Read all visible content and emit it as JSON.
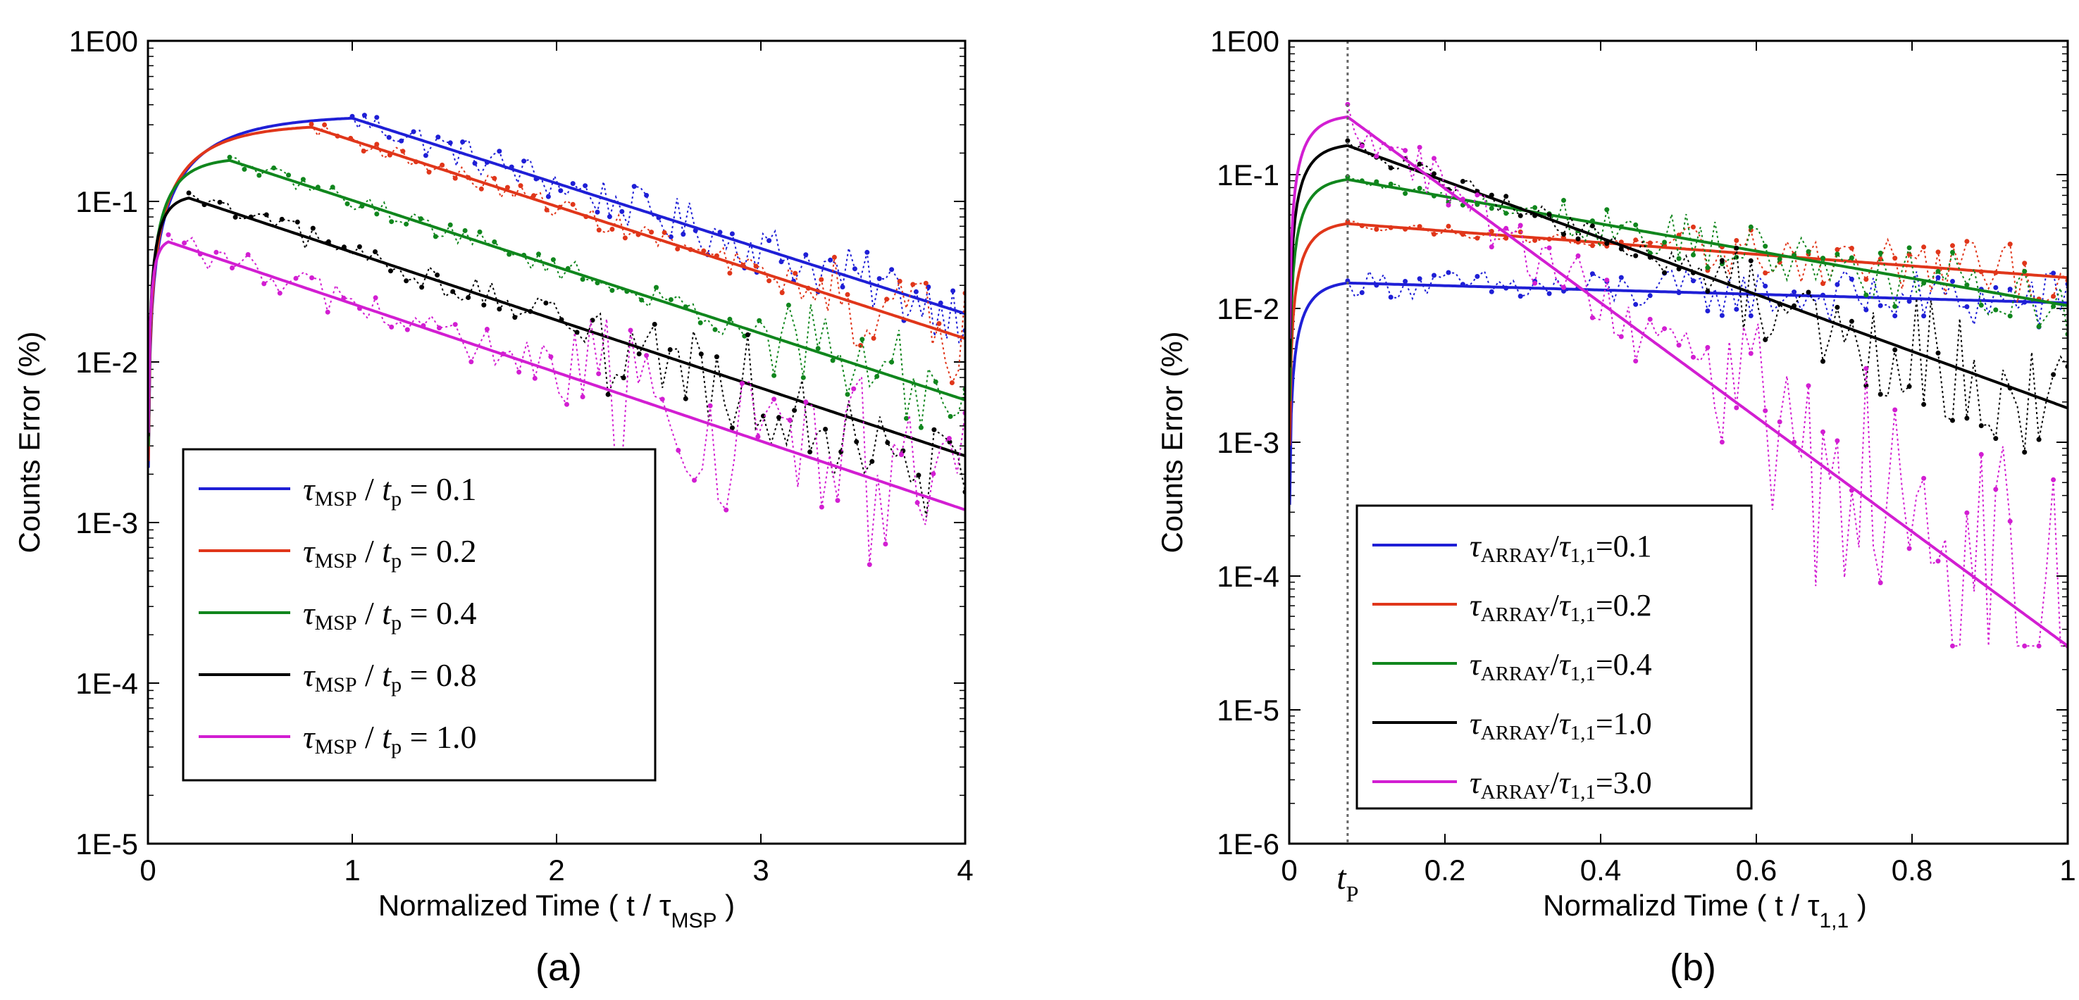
{
  "colors": {
    "blue": "#1f1fd6",
    "red": "#e0361a",
    "green": "#10861d",
    "black": "#000000",
    "magenta": "#d21ed2"
  },
  "chart_data": [
    {
      "type": "line",
      "panel_label": "(a)",
      "xlabel_prefix": "Normalized Time ( t / τ",
      "xlabel_sub": "MSP",
      "xlabel_suffix": " )",
      "ylabel": "Counts Error (%)",
      "yscale": "log",
      "xlim": [
        0,
        4
      ],
      "ylim": [
        1e-05,
        1
      ],
      "xticks": [
        0,
        1,
        2,
        3,
        4
      ],
      "xtick_labels": [
        "0",
        "1",
        "2",
        "3",
        "4"
      ],
      "yticks": [
        1e-05,
        0.0001,
        0.001,
        0.01,
        0.1,
        1
      ],
      "ytick_labels": [
        "1E-5",
        "1E-4",
        "1E-3",
        "1E-2",
        "1E-1",
        "1E00"
      ],
      "legend_position": "lower-left",
      "series": [
        {
          "name": "τMSP / tp = 0.1",
          "legend": {
            "tau_sub": "MSP",
            "t_sub": "p",
            "value": "= 0.1"
          },
          "color_key": "blue",
          "peak_t": 1.0,
          "peak_y": 0.33,
          "end_y": 0.02,
          "noise": 0.05,
          "noise_start": 1.0
        },
        {
          "name": "τMSP / tp = 0.2",
          "legend": {
            "tau_sub": "MSP",
            "t_sub": "p",
            "value": "= 0.2"
          },
          "color_key": "red",
          "peak_t": 0.8,
          "peak_y": 0.29,
          "end_y": 0.014,
          "noise": 0.08,
          "noise_start": 3.3
        },
        {
          "name": "τMSP / tp = 0.4",
          "legend": {
            "tau_sub": "MSP",
            "t_sub": "p",
            "value": "= 0.4"
          },
          "color_key": "green",
          "peak_t": 0.4,
          "peak_y": 0.18,
          "end_y": 0.0058,
          "noise": 0.08,
          "noise_start": 3.0
        },
        {
          "name": "τMSP / tp = 0.8",
          "legend": {
            "tau_sub": "MSP",
            "t_sub": "p",
            "value": "= 0.8"
          },
          "color_key": "black",
          "peak_t": 0.2,
          "peak_y": 0.105,
          "end_y": 0.0026,
          "noise": 0.12,
          "noise_start": 2.2
        },
        {
          "name": "τMSP / tp = 1.0",
          "legend": {
            "tau_sub": "MSP",
            "t_sub": "p",
            "value": "= 1.0"
          },
          "color_key": "magenta",
          "peak_t": 0.1,
          "peak_y": 0.056,
          "end_y": 0.0012,
          "noise": 0.16,
          "noise_start": 2.0
        }
      ]
    },
    {
      "type": "line",
      "panel_label": "(b)",
      "xlabel_prefix": "Normalizd Time ( t / τ",
      "xlabel_sub": "1,1",
      "xlabel_suffix": " )",
      "ylabel": "Counts Error (%)",
      "yscale": "log",
      "xlim": [
        0,
        1
      ],
      "ylim": [
        1e-06,
        1
      ],
      "xticks": [
        0,
        0.2,
        0.4,
        0.6,
        0.8,
        1
      ],
      "xtick_labels": [
        "0",
        "0.2",
        "0.4",
        "0.6",
        "0.8",
        "1"
      ],
      "yticks": [
        1e-06,
        1e-05,
        0.0001,
        0.001,
        0.01,
        0.1,
        1
      ],
      "ytick_labels": [
        "1E-6",
        "1E-5",
        "1E-4",
        "1E-3",
        "1E-2",
        "1E-1",
        "1E00"
      ],
      "vline_x": 0.075,
      "vline_label": "t",
      "vline_label_sub": "P",
      "legend_position": "lower-left",
      "series": [
        {
          "name": "τARRAY/τ1,1=0.1",
          "legend": {
            "tau_sub": "ARRAY",
            "value": "=0.1"
          },
          "color_key": "blue",
          "peak_t": 0.075,
          "peak_y": 0.0155,
          "end_y": 0.011,
          "noise": 0.06,
          "noise_start": 0.08
        },
        {
          "name": "τARRAY/τ1,1=0.2",
          "legend": {
            "tau_sub": "ARRAY",
            "value": "=0.2"
          },
          "color_key": "red",
          "peak_t": 0.075,
          "peak_y": 0.043,
          "end_y": 0.017,
          "noise": 0.06,
          "noise_start": 0.5
        },
        {
          "name": "τARRAY/τ1,1=0.4",
          "legend": {
            "tau_sub": "ARRAY",
            "value": "=0.4"
          },
          "color_key": "green",
          "peak_t": 0.075,
          "peak_y": 0.092,
          "end_y": 0.0105,
          "noise": 0.07,
          "noise_start": 0.35
        },
        {
          "name": "τARRAY/τ1,1=1.0",
          "legend": {
            "tau_sub": "ARRAY",
            "value": "=1.0"
          },
          "color_key": "black",
          "peak_t": 0.075,
          "peak_y": 0.165,
          "end_y": 0.0018,
          "noise": 0.12,
          "noise_start": 0.55
        },
        {
          "name": "τARRAY/τ1,1=3.0",
          "legend": {
            "tau_sub": "ARRAY",
            "value": "=3.0"
          },
          "color_key": "magenta",
          "peak_t": 0.075,
          "peak_y": 0.27,
          "end_y": 3e-05,
          "noise": 0.3,
          "noise_start": 0.55
        }
      ]
    }
  ]
}
